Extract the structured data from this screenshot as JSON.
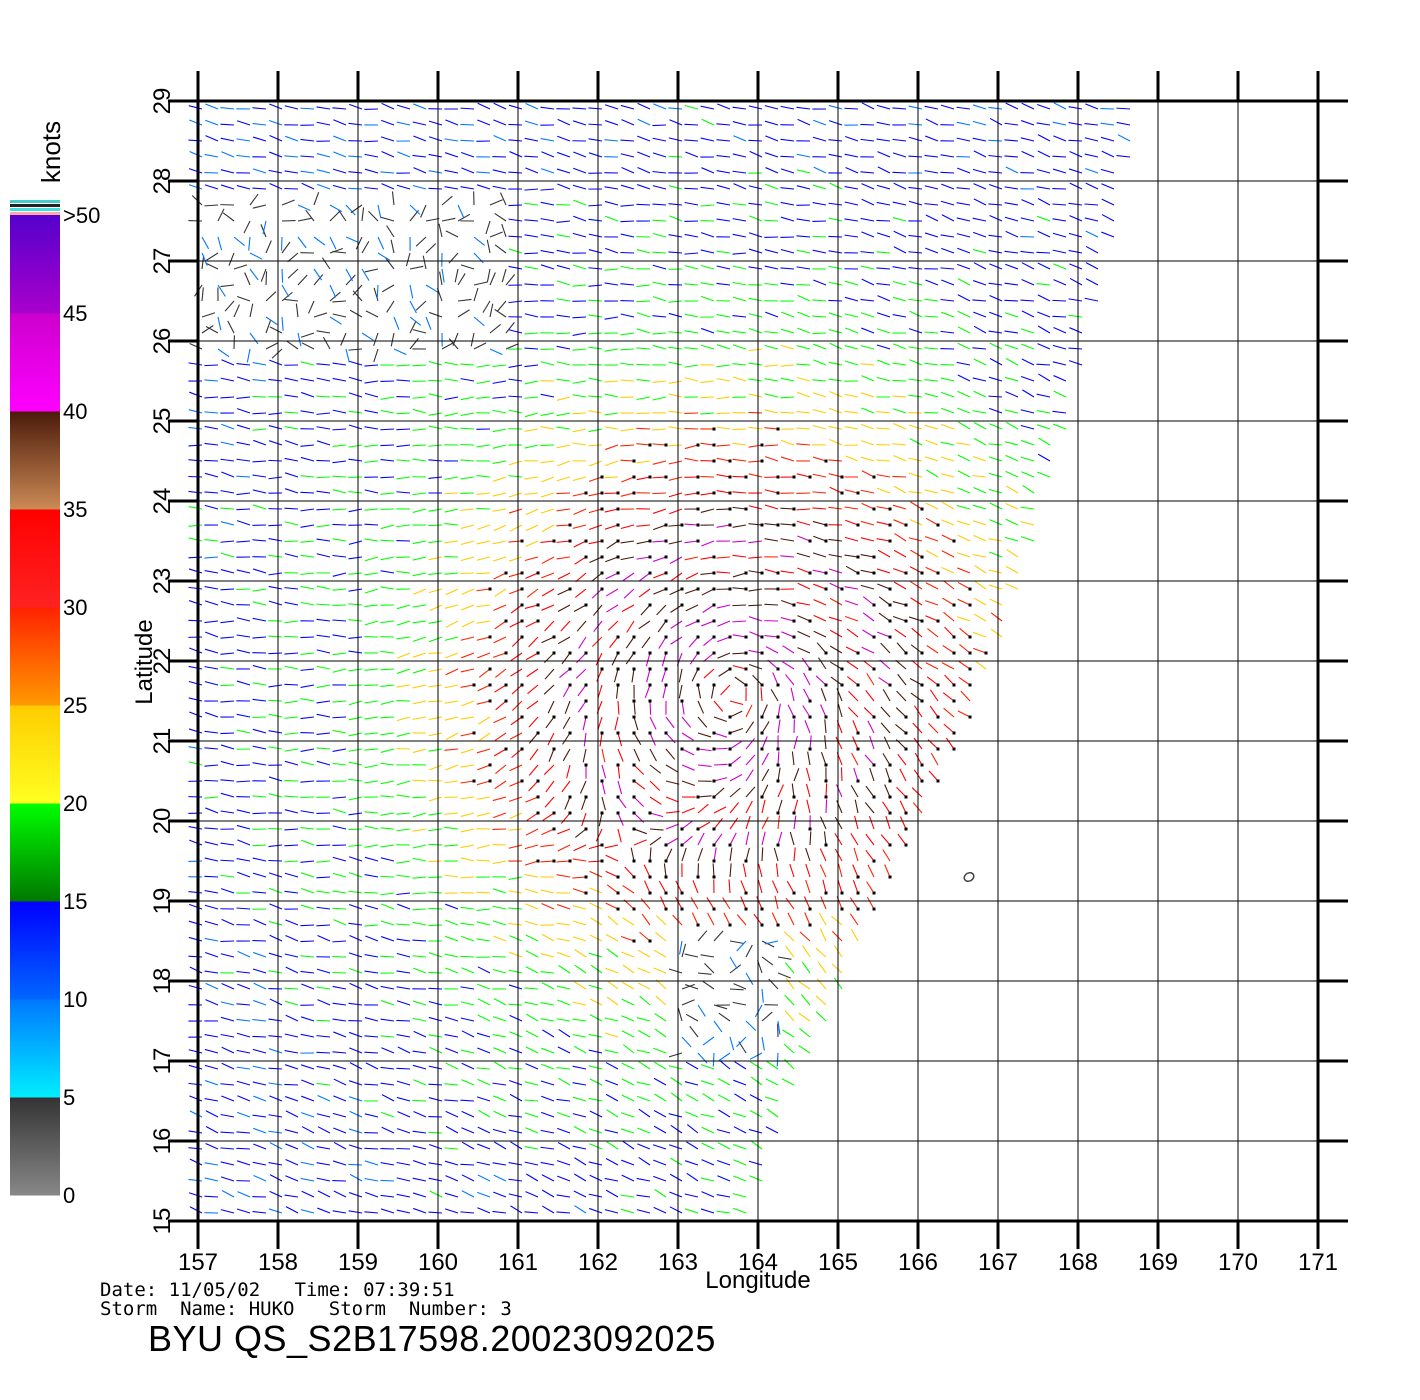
{
  "chart_data": {
    "type": "wind-vector-map",
    "xlabel": "Longitude",
    "ylabel": "Latitude",
    "xlim": [
      157,
      171
    ],
    "ylim": [
      15,
      29
    ],
    "x_ticks": [
      "157",
      "158",
      "159",
      "160",
      "161",
      "162",
      "163",
      "164",
      "165",
      "166",
      "167",
      "168",
      "169",
      "170",
      "171"
    ],
    "y_ticks": [
      "15",
      "16",
      "17",
      "18",
      "19",
      "20",
      "21",
      "22",
      "23",
      "24",
      "25",
      "26",
      "27",
      "28",
      "29"
    ],
    "grid": true,
    "swath_edge": [
      [
        163.9,
        15
      ],
      [
        164.4,
        16.5
      ],
      [
        165.1,
        18
      ],
      [
        165.8,
        19.5
      ],
      [
        166.6,
        21
      ],
      [
        167.3,
        23
      ],
      [
        167.9,
        25
      ],
      [
        168.4,
        27
      ],
      [
        168.8,
        29
      ]
    ],
    "storm_center": [
      163.7,
      21.6
    ],
    "colorbar": {
      "title": "knots",
      "labels": [
        "0",
        "5",
        "10",
        "15",
        "20",
        "25",
        "30",
        "35",
        "40",
        "45",
        ">50"
      ],
      "bands": [
        {
          "min": 0,
          "max": 5,
          "top": "#333333",
          "bottom": "#888888"
        },
        {
          "min": 5,
          "max": 10,
          "top": "#0077ff",
          "bottom": "#00eeff"
        },
        {
          "min": 10,
          "max": 15,
          "top": "#0000ff",
          "bottom": "#0066ff"
        },
        {
          "min": 15,
          "max": 20,
          "top": "#00ff00",
          "bottom": "#007700"
        },
        {
          "min": 20,
          "max": 25,
          "top": "#ffcc00",
          "bottom": "#ffff22"
        },
        {
          "min": 25,
          "max": 30,
          "top": "#ff2200",
          "bottom": "#ff9900"
        },
        {
          "min": 30,
          "max": 35,
          "top": "#ff0000",
          "bottom": "#ff2222"
        },
        {
          "min": 35,
          "max": 40,
          "top": "#4a1a0a",
          "bottom": "#cc8a55"
        },
        {
          "min": 40,
          "max": 45,
          "top": "#cc00cc",
          "bottom": "#ff00ff"
        },
        {
          "min": 45,
          "max": 50,
          "top": "#5500cc",
          "bottom": "#aa00cc"
        }
      ]
    }
  },
  "info": {
    "line1": "Date: 11/05/02   Time: 07:39:51",
    "line2": "Storm  Name: HUKO   Storm  Number: 3",
    "file_id": "BYU  QS_S2B17598.20023092025"
  }
}
